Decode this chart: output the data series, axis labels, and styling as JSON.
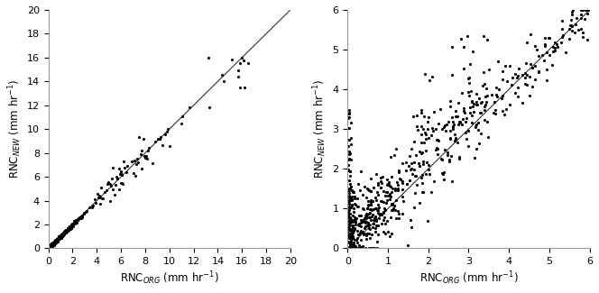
{
  "left_plot": {
    "xlim": [
      0,
      20
    ],
    "ylim": [
      0,
      20
    ],
    "xticks": [
      0,
      2,
      4,
      6,
      8,
      10,
      12,
      14,
      16,
      18,
      20
    ],
    "yticks": [
      0,
      2,
      4,
      6,
      8,
      10,
      12,
      14,
      16,
      18,
      20
    ],
    "xlabel": "RNC$_{ORG}$ (mm hr$^{-1}$)",
    "ylabel": "RNC$_{NEW}$ (mm hr$^{-1}$)",
    "seed": 7,
    "n_cluster": 450,
    "n_medium": 60,
    "n_large": 15
  },
  "right_plot": {
    "xlim": [
      0,
      6
    ],
    "ylim": [
      0,
      6
    ],
    "xticks": [
      0,
      1,
      2,
      3,
      4,
      5,
      6
    ],
    "yticks": [
      0,
      1,
      2,
      3,
      4,
      5,
      6
    ],
    "xlabel": "RNC$_{ORG}$ (mm hr$^{-1}$)",
    "ylabel": "RNC$_{NEW}$ (mm hr$^{-1}$)",
    "seed": 13,
    "n_points": 700
  },
  "dot_color": "#000000",
  "dot_size": 5,
  "line_color": "#333333",
  "line_width": 0.8,
  "bg_color": "#ffffff",
  "font_size": 8.5,
  "tick_fontsize": 8
}
